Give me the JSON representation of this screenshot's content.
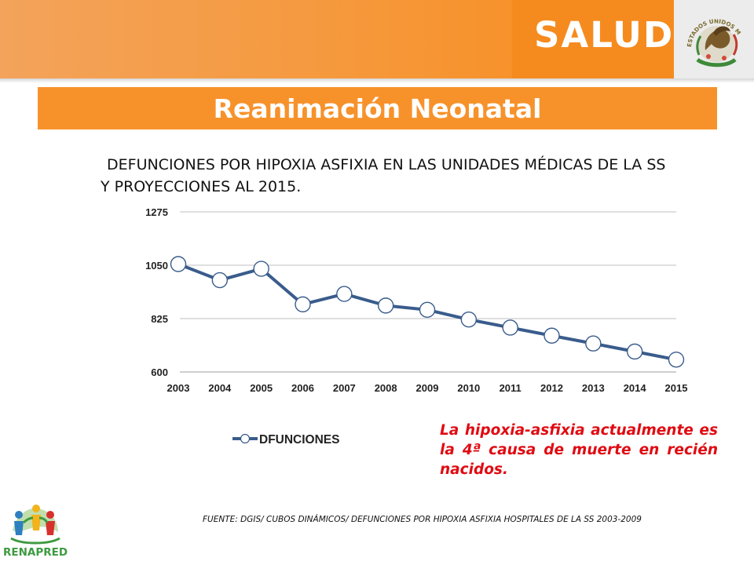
{
  "header": {
    "brand": "SALUD",
    "seal_text": "ESTADOS UNIDOS MEXICANOS"
  },
  "title": "Reanimación Neonatal",
  "subtitle": "DEFUNCIONES POR HIPOXIA ASFIXIA EN LAS UNIDADES MÉDICAS DE LA SS Y PROYECCIONES AL 2015.",
  "colors": {
    "accent_orange": "#f7922b",
    "line_blue": "#3a5c8c",
    "note_red": "#e00b12",
    "grid_gray": "#bfbfbf"
  },
  "chart_data": {
    "type": "line",
    "title": "",
    "xlabel": "",
    "ylabel": "",
    "categories": [
      "2003",
      "2004",
      "2005",
      "2006",
      "2007",
      "2008",
      "2009",
      "2010",
      "2011",
      "2012",
      "2013",
      "2014",
      "2015"
    ],
    "series": [
      {
        "name": "DFUNCIONES",
        "values": [
          1055,
          987,
          1035,
          885,
          929,
          880,
          862,
          821,
          787,
          753,
          720,
          686,
          652
        ]
      }
    ],
    "ylim": [
      600,
      1275
    ],
    "yticks": [
      "600",
      "825",
      "1050",
      "1275"
    ],
    "grid": true,
    "legend_position": "bottom"
  },
  "note": "La hipoxia-asfixia actualmente es la 4ª causa de muerte en recién nacidos.",
  "source": "FUENTE: DGIS/ CUBOS DINÁMICOS/ DEFUNCIONES POR HIPOXIA ASFIXIA HOSPITALES DE LA SS 2003-2009",
  "footer_logo": {
    "label": "RENAPRED"
  }
}
